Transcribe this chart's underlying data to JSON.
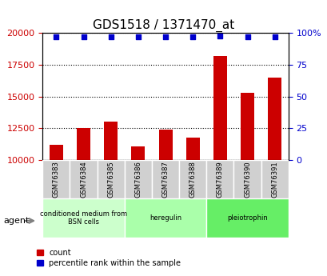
{
  "title": "GDS1518 / 1371470_at",
  "samples": [
    "GSM76383",
    "GSM76384",
    "GSM76385",
    "GSM76386",
    "GSM76387",
    "GSM76388",
    "GSM76389",
    "GSM76390",
    "GSM76391"
  ],
  "counts": [
    11200,
    12500,
    13000,
    11100,
    12400,
    11800,
    18200,
    15300,
    16500
  ],
  "percentiles": [
    97,
    97,
    97,
    97,
    97,
    97,
    98,
    97,
    97
  ],
  "ylim_left": [
    10000,
    20000
  ],
  "ylim_right": [
    0,
    100
  ],
  "yticks_left": [
    10000,
    12500,
    15000,
    17500,
    20000
  ],
  "yticks_right": [
    0,
    25,
    50,
    75,
    100
  ],
  "bar_color": "#cc0000",
  "dot_color": "#0000cc",
  "groups": [
    {
      "label": "conditioned medium from\nBSN cells",
      "start": 0,
      "end": 3,
      "color": "#ccffcc"
    },
    {
      "label": "heregulin",
      "start": 3,
      "end": 6,
      "color": "#aaffaa"
    },
    {
      "label": "pleiotrophin",
      "start": 6,
      "end": 9,
      "color": "#66ee66"
    }
  ],
  "agent_label": "agent",
  "legend_count_label": "count",
  "legend_pct_label": "percentile rank within the sample",
  "background_color": "#f0f0f0",
  "plot_bg_color": "#ffffff"
}
